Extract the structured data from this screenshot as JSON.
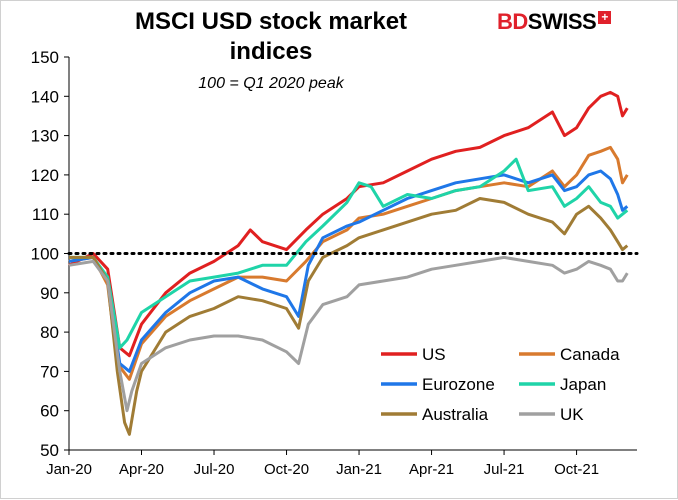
{
  "chart_data": {
    "type": "line",
    "title": "MSCI USD stock market indices",
    "subtitle": "100 = Q1 2020 peak",
    "brand": {
      "part1": "BD",
      "part2": "SWISS",
      "symbol": "+"
    },
    "ylim": [
      50,
      150
    ],
    "yticks": [
      50,
      60,
      70,
      80,
      90,
      100,
      110,
      120,
      130,
      140,
      150
    ],
    "xlim": [
      0,
      23.5
    ],
    "xticks": [
      {
        "x": 0,
        "label": "Jan-20"
      },
      {
        "x": 3,
        "label": "Apr-20"
      },
      {
        "x": 6,
        "label": "Jul-20"
      },
      {
        "x": 9,
        "label": "Oct-20"
      },
      {
        "x": 12,
        "label": "Jan-21"
      },
      {
        "x": 15,
        "label": "Apr-21"
      },
      {
        "x": 18,
        "label": "Jul-21"
      },
      {
        "x": 21,
        "label": "Oct-21"
      }
    ],
    "reference_line": 100,
    "legend_position": "bottom-right",
    "series": [
      {
        "name": "US",
        "color": "#e02020",
        "points": [
          [
            0,
            97
          ],
          [
            1,
            100
          ],
          [
            1.6,
            96
          ],
          [
            2.1,
            76
          ],
          [
            2.5,
            74
          ],
          [
            3,
            82
          ],
          [
            4,
            90
          ],
          [
            5,
            95
          ],
          [
            6,
            98
          ],
          [
            7,
            102
          ],
          [
            7.5,
            106
          ],
          [
            8,
            103
          ],
          [
            9,
            101
          ],
          [
            9.8,
            106
          ],
          [
            10.5,
            110
          ],
          [
            11.5,
            114
          ],
          [
            12,
            117
          ],
          [
            13,
            118
          ],
          [
            14,
            121
          ],
          [
            15,
            124
          ],
          [
            16,
            126
          ],
          [
            17,
            127
          ],
          [
            18,
            130
          ],
          [
            19,
            132
          ],
          [
            20,
            136
          ],
          [
            20.5,
            130
          ],
          [
            21,
            132
          ],
          [
            21.5,
            137
          ],
          [
            22,
            140
          ],
          [
            22.4,
            141
          ],
          [
            22.7,
            140
          ],
          [
            22.9,
            135
          ],
          [
            23.1,
            137
          ]
        ]
      },
      {
        "name": "Canada",
        "color": "#d87a2e",
        "points": [
          [
            0,
            98
          ],
          [
            1,
            99
          ],
          [
            1.6,
            92
          ],
          [
            2,
            72
          ],
          [
            2.5,
            68
          ],
          [
            3,
            77
          ],
          [
            4,
            84
          ],
          [
            5,
            88
          ],
          [
            6,
            91
          ],
          [
            7,
            94
          ],
          [
            8,
            94
          ],
          [
            9,
            93
          ],
          [
            9.8,
            98
          ],
          [
            10.5,
            103
          ],
          [
            11.5,
            106
          ],
          [
            12,
            109
          ],
          [
            13,
            110
          ],
          [
            14,
            112
          ],
          [
            15,
            114
          ],
          [
            16,
            116
          ],
          [
            17,
            117
          ],
          [
            18,
            118
          ],
          [
            19,
            117
          ],
          [
            20,
            121
          ],
          [
            20.5,
            117
          ],
          [
            21,
            120
          ],
          [
            21.5,
            125
          ],
          [
            22,
            126
          ],
          [
            22.4,
            127
          ],
          [
            22.7,
            124
          ],
          [
            22.9,
            118
          ],
          [
            23.1,
            120
          ]
        ]
      },
      {
        "name": "Eurozone",
        "color": "#1f77e8",
        "points": [
          [
            0,
            98
          ],
          [
            1,
            99
          ],
          [
            1.6,
            93
          ],
          [
            2.1,
            72
          ],
          [
            2.5,
            70
          ],
          [
            3,
            78
          ],
          [
            4,
            85
          ],
          [
            5,
            90
          ],
          [
            6,
            93
          ],
          [
            7,
            94
          ],
          [
            8,
            91
          ],
          [
            9,
            89
          ],
          [
            9.5,
            84
          ],
          [
            9.9,
            97
          ],
          [
            10.5,
            104
          ],
          [
            11.5,
            107
          ],
          [
            12,
            108
          ],
          [
            13,
            111
          ],
          [
            14,
            114
          ],
          [
            15,
            116
          ],
          [
            16,
            118
          ],
          [
            17,
            119
          ],
          [
            18,
            120
          ],
          [
            19,
            118
          ],
          [
            20,
            120
          ],
          [
            20.5,
            116
          ],
          [
            21,
            117
          ],
          [
            21.5,
            120
          ],
          [
            22,
            121
          ],
          [
            22.4,
            119
          ],
          [
            22.7,
            115
          ],
          [
            22.9,
            111
          ],
          [
            23.1,
            112
          ]
        ]
      },
      {
        "name": "Japan",
        "color": "#1fd4a8",
        "points": [
          [
            0,
            99
          ],
          [
            1,
            99
          ],
          [
            1.6,
            94
          ],
          [
            2.1,
            76
          ],
          [
            2.4,
            78
          ],
          [
            3,
            85
          ],
          [
            4,
            89
          ],
          [
            5,
            93
          ],
          [
            6,
            94
          ],
          [
            7,
            95
          ],
          [
            8,
            97
          ],
          [
            9,
            97
          ],
          [
            9.8,
            103
          ],
          [
            10.5,
            107
          ],
          [
            11.5,
            113
          ],
          [
            12,
            118
          ],
          [
            12.5,
            117
          ],
          [
            13,
            112
          ],
          [
            14,
            115
          ],
          [
            15,
            114
          ],
          [
            16,
            116
          ],
          [
            17,
            117
          ],
          [
            18,
            121
          ],
          [
            18.5,
            124
          ],
          [
            19,
            116
          ],
          [
            20,
            117
          ],
          [
            20.5,
            112
          ],
          [
            21,
            114
          ],
          [
            21.5,
            117
          ],
          [
            22,
            113
          ],
          [
            22.4,
            112
          ],
          [
            22.7,
            109
          ],
          [
            22.9,
            110
          ],
          [
            23.1,
            111
          ]
        ]
      },
      {
        "name": "Australia",
        "color": "#a07c35",
        "points": [
          [
            0,
            99
          ],
          [
            1,
            99
          ],
          [
            1.6,
            93
          ],
          [
            2,
            70
          ],
          [
            2.3,
            57
          ],
          [
            2.5,
            54
          ],
          [
            2.8,
            65
          ],
          [
            3,
            70
          ],
          [
            4,
            80
          ],
          [
            5,
            84
          ],
          [
            6,
            86
          ],
          [
            7,
            89
          ],
          [
            8,
            88
          ],
          [
            9,
            86
          ],
          [
            9.5,
            81
          ],
          [
            9.9,
            93
          ],
          [
            10.5,
            99
          ],
          [
            11.5,
            102
          ],
          [
            12,
            104
          ],
          [
            13,
            106
          ],
          [
            14,
            108
          ],
          [
            15,
            110
          ],
          [
            16,
            111
          ],
          [
            17,
            114
          ],
          [
            18,
            113
          ],
          [
            19,
            110
          ],
          [
            20,
            108
          ],
          [
            20.5,
            105
          ],
          [
            21,
            110
          ],
          [
            21.5,
            112
          ],
          [
            22,
            109
          ],
          [
            22.4,
            106
          ],
          [
            22.7,
            103
          ],
          [
            22.9,
            101
          ],
          [
            23.1,
            102
          ]
        ]
      },
      {
        "name": "UK",
        "color": "#a0a0a0",
        "points": [
          [
            0,
            97
          ],
          [
            1,
            98
          ],
          [
            1.6,
            93
          ],
          [
            2.1,
            70
          ],
          [
            2.4,
            60
          ],
          [
            2.6,
            65
          ],
          [
            3,
            72
          ],
          [
            4,
            76
          ],
          [
            5,
            78
          ],
          [
            6,
            79
          ],
          [
            7,
            79
          ],
          [
            8,
            78
          ],
          [
            9,
            75
          ],
          [
            9.5,
            72
          ],
          [
            9.9,
            82
          ],
          [
            10.5,
            87
          ],
          [
            11.5,
            89
          ],
          [
            12,
            92
          ],
          [
            13,
            93
          ],
          [
            14,
            94
          ],
          [
            15,
            96
          ],
          [
            16,
            97
          ],
          [
            17,
            98
          ],
          [
            18,
            99
          ],
          [
            19,
            98
          ],
          [
            20,
            97
          ],
          [
            20.5,
            95
          ],
          [
            21,
            96
          ],
          [
            21.5,
            98
          ],
          [
            22,
            97
          ],
          [
            22.4,
            96
          ],
          [
            22.7,
            93
          ],
          [
            22.9,
            93
          ],
          [
            23.1,
            95
          ]
        ]
      }
    ]
  }
}
